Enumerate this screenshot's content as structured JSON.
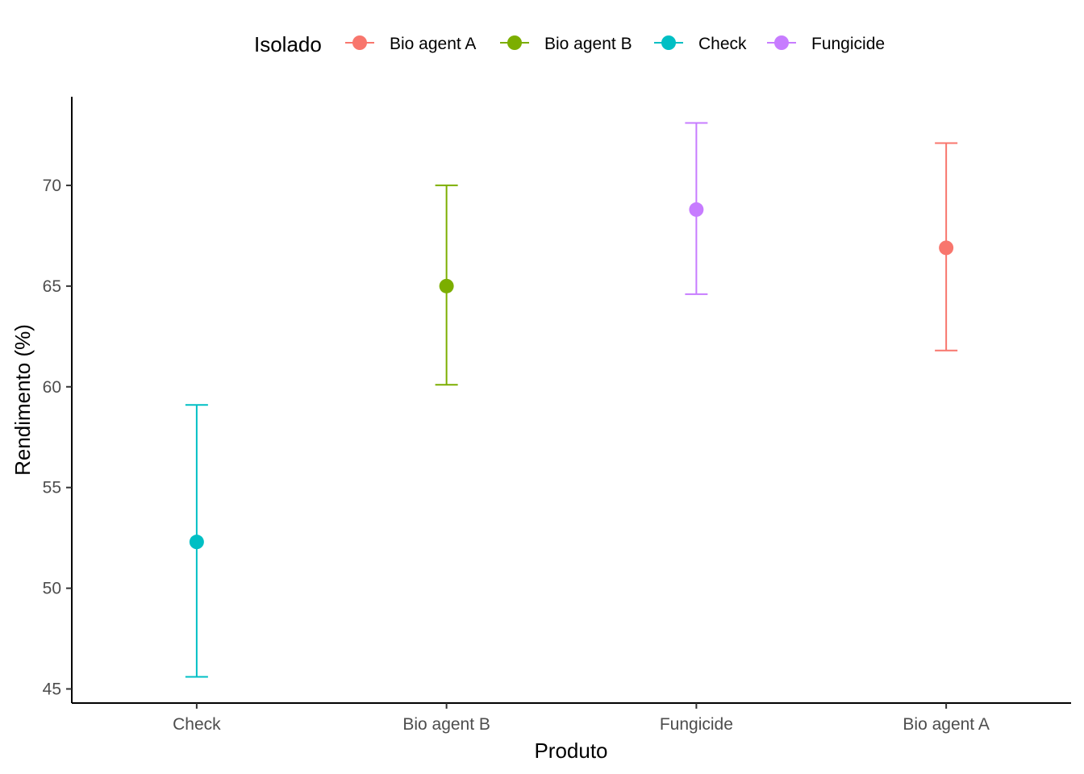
{
  "chart_data": {
    "type": "scatter",
    "subtype": "point-with-error-bars",
    "xlabel": "Produto",
    "ylabel": "Rendimento (%)",
    "categories": [
      "Check",
      "Bio agent B",
      "Fungicide",
      "Bio agent A"
    ],
    "ylim": [
      44.3,
      74.4
    ],
    "yticks": [
      45,
      50,
      55,
      60,
      65,
      70
    ],
    "grid": false,
    "legend": {
      "title": "Isolado",
      "position": "top",
      "entries": [
        "Bio agent A",
        "Bio agent B",
        "Check",
        "Fungicide"
      ]
    },
    "series": [
      {
        "name": "Check",
        "category": "Check",
        "color": "#00BFC4",
        "value": 52.3,
        "lower": 45.6,
        "upper": 59.1
      },
      {
        "name": "Bio agent B",
        "category": "Bio agent B",
        "color": "#7CAE00",
        "value": 65.0,
        "lower": 60.1,
        "upper": 70.0
      },
      {
        "name": "Fungicide",
        "category": "Fungicide",
        "color": "#C77CFF",
        "value": 68.8,
        "lower": 64.6,
        "upper": 73.1
      },
      {
        "name": "Bio agent A",
        "category": "Bio agent A",
        "color": "#F8766D",
        "value": 66.9,
        "lower": 61.8,
        "upper": 72.1
      }
    ]
  }
}
